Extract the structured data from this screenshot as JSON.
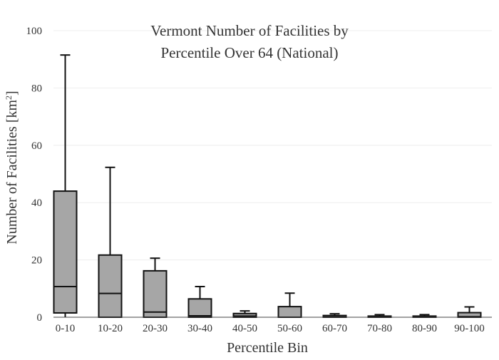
{
  "chart_data": {
    "type": "box",
    "title_lines": [
      "Vermont Number of Facilities by",
      "Percentile Over 64 (National)"
    ],
    "xlabel": "Percentile Bin",
    "ylabel": "Number of Facilities  [km",
    "ylabel_sup": "2",
    "ylabel_end": "]",
    "ylim": [
      0,
      100
    ],
    "yticks": [
      0,
      20,
      40,
      60,
      80,
      100
    ],
    "grid": true,
    "categories": [
      "0-10",
      "10-20",
      "20-30",
      "30-40",
      "40-50",
      "50-60",
      "60-70",
      "70-80",
      "80-90",
      "90-100"
    ],
    "boxes": [
      {
        "min": 0,
        "q1": 1.5,
        "median": 10.7,
        "q3": 44.0,
        "max": 91.5
      },
      {
        "min": 0,
        "q1": 0,
        "median": 8.3,
        "q3": 21.7,
        "max": 52.3
      },
      {
        "min": 0,
        "q1": 0,
        "median": 1.8,
        "q3": 16.2,
        "max": 20.6
      },
      {
        "min": 0,
        "q1": 0,
        "median": 0.5,
        "q3": 6.4,
        "max": 10.7
      },
      {
        "min": 0,
        "q1": 0,
        "median": 0.4,
        "q3": 1.3,
        "max": 2.2
      },
      {
        "min": 0,
        "q1": 0,
        "median": 0,
        "q3": 3.7,
        "max": 8.4
      },
      {
        "min": 0,
        "q1": 0,
        "median": 0.1,
        "q3": 0.6,
        "max": 1.2
      },
      {
        "min": 0,
        "q1": 0,
        "median": 0.1,
        "q3": 0.4,
        "max": 0.9
      },
      {
        "min": 0,
        "q1": 0,
        "median": 0.1,
        "q3": 0.4,
        "max": 0.9
      },
      {
        "min": 0,
        "q1": 0,
        "median": 0.2,
        "q3": 1.6,
        "max": 3.6
      }
    ],
    "colors": {
      "box_fill": "#a6a6a6",
      "box_stroke": "#111111",
      "grid": "#eeeeee",
      "text": "#333333"
    }
  }
}
